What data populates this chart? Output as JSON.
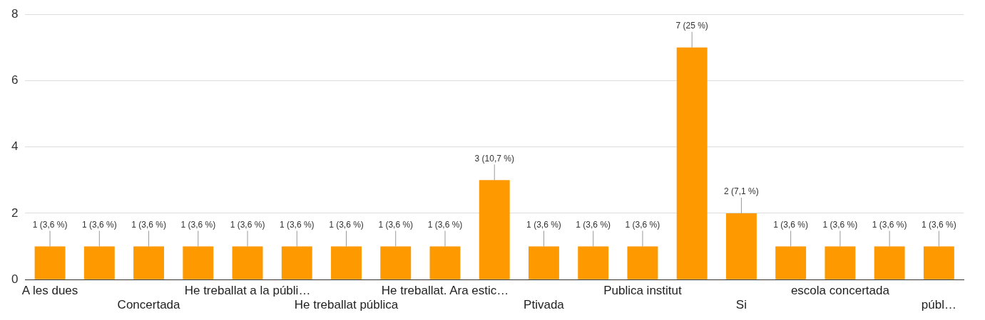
{
  "chart_data": {
    "type": "bar",
    "categories": [
      "A les dues",
      null,
      "Concertada",
      null,
      "He treballat a la públi…",
      null,
      "He treballat pública",
      null,
      "He treballat. Ara estic…",
      null,
      "Ptivada",
      null,
      "Publica institut",
      null,
      "Si",
      null,
      "escola concertada",
      null,
      "públ…"
    ],
    "values": [
      1,
      1,
      1,
      1,
      1,
      1,
      1,
      1,
      1,
      3,
      1,
      1,
      1,
      7,
      2,
      1,
      1,
      1,
      1
    ],
    "value_labels": [
      "1 (3,6 %)",
      "1 (3,6 %)",
      "1 (3,6 %)",
      "1 (3,6 %)",
      "1 (3,6 %)",
      "1 (3,6 %)",
      "1 (3,6 %)",
      "1 (3,6 %)",
      "1 (3,6 %)",
      "3 (10,7 %)",
      "1 (3,6 %)",
      "1 (3,6 %)",
      "1 (3,6 %)",
      "7 (25 %)",
      "2 (7,1 %)",
      "1 (3,6 %)",
      "1 (3,6 %)",
      "1 (3,6 %)",
      "1 (3,6 %)"
    ],
    "color": "#ff9900",
    "ylim": [
      0,
      8
    ],
    "yticks": [
      0,
      2,
      4,
      6,
      8
    ],
    "grid": "y"
  }
}
